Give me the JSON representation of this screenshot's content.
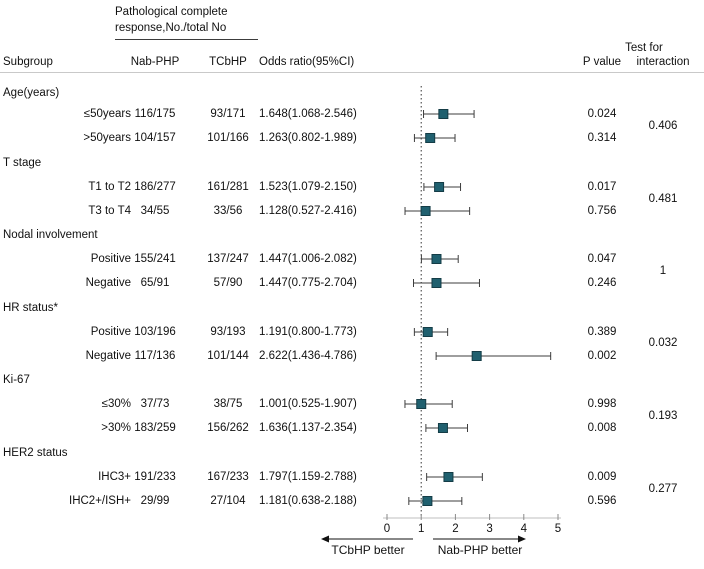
{
  "header": {
    "response_title_line1": "Pathological complete",
    "response_title_line2": "response,No./total No",
    "subgroup": "Subgroup",
    "nab": "Nab-PHP",
    "tcb": "TCbHP",
    "odds_ratio": "Odds ratio(95%CI)",
    "p_value": "P value",
    "test_for": "Test for",
    "interaction": "interaction"
  },
  "chart_data": {
    "type": "forest",
    "title": "Pathological complete response,No./total No",
    "xlim": [
      0,
      5
    ],
    "x_ticks": [
      "0",
      "1",
      "2",
      "3",
      "4",
      "5"
    ],
    "ref_line": 1,
    "xlabel_left": "TCbHP better",
    "xlabel_right": "Nab-PHP better",
    "colors": {
      "marker_fill": "#20606f",
      "marker_stroke": "#143c46",
      "ci_line": "#3d3d3d",
      "axis_line": "#bfbfbf",
      "tick": "#8a8a8a",
      "ref_line": "#333333",
      "text": "#111111"
    },
    "groups": [
      {
        "label": "Age(years)",
        "interaction_p": "0.406",
        "rows": [
          {
            "label": "≤50years",
            "nab": "116/175",
            "tcb": "93/171",
            "or_text": "1.648(1.068-2.546)",
            "est": 1.648,
            "lo": 1.068,
            "hi": 2.546,
            "p": "0.024"
          },
          {
            "label": ">50years",
            "nab": "104/157",
            "tcb": "101/166",
            "or_text": "1.263(0.802-1.989)",
            "est": 1.263,
            "lo": 0.802,
            "hi": 1.989,
            "p": "0.314"
          }
        ]
      },
      {
        "label": "T stage",
        "interaction_p": "0.481",
        "rows": [
          {
            "label": "T1 to T2",
            "nab": "186/277",
            "tcb": "161/281",
            "or_text": "1.523(1.079-2.150)",
            "est": 1.523,
            "lo": 1.079,
            "hi": 2.15,
            "p": "0.017"
          },
          {
            "label": "T3 to T4",
            "nab": "34/55",
            "tcb": "33/56",
            "or_text": "1.128(0.527-2.416)",
            "est": 1.128,
            "lo": 0.527,
            "hi": 2.416,
            "p": "0.756"
          }
        ]
      },
      {
        "label": "Nodal involvement",
        "interaction_p": "1",
        "rows": [
          {
            "label": "Positive",
            "nab": "155/241",
            "tcb": "137/247",
            "or_text": "1.447(1.006-2.082)",
            "est": 1.447,
            "lo": 1.006,
            "hi": 2.082,
            "p": "0.047"
          },
          {
            "label": "Negative",
            "nab": "65/91",
            "tcb": "57/90",
            "or_text": "1.447(0.775-2.704)",
            "est": 1.447,
            "lo": 0.775,
            "hi": 2.704,
            "p": "0.246"
          }
        ]
      },
      {
        "label": "HR status*",
        "interaction_p": "0.032",
        "rows": [
          {
            "label": "Positive",
            "nab": "103/196",
            "tcb": "93/193",
            "or_text": "1.191(0.800-1.773)",
            "est": 1.191,
            "lo": 0.8,
            "hi": 1.773,
            "p": "0.389"
          },
          {
            "label": "Negative",
            "nab": "117/136",
            "tcb": "101/144",
            "or_text": "2.622(1.436-4.786)",
            "est": 2.622,
            "lo": 1.436,
            "hi": 4.786,
            "p": "0.002"
          }
        ]
      },
      {
        "label": "Ki-67",
        "interaction_p": "0.193",
        "rows": [
          {
            "label": "≤30%",
            "nab": "37/73",
            "tcb": "38/75",
            "or_text": "1.001(0.525-1.907)",
            "est": 1.001,
            "lo": 0.525,
            "hi": 1.907,
            "p": "0.998"
          },
          {
            "label": ">30%",
            "nab": "183/259",
            "tcb": "156/262",
            "or_text": "1.636(1.137-2.354)",
            "est": 1.636,
            "lo": 1.137,
            "hi": 2.354,
            "p": "0.008"
          }
        ]
      },
      {
        "label": "HER2 status",
        "interaction_p": "0.277",
        "rows": [
          {
            "label": "IHC3+",
            "nab": "191/233",
            "tcb": "167/233",
            "or_text": "1.797(1.159-2.788)",
            "est": 1.797,
            "lo": 1.159,
            "hi": 2.788,
            "p": "0.009"
          },
          {
            "label": "IHC2+/ISH+",
            "nab": "29/99",
            "tcb": "27/104",
            "or_text": "1.181(0.638-2.188)",
            "est": 1.181,
            "lo": 0.638,
            "hi": 2.188,
            "p": "0.596"
          }
        ]
      }
    ]
  }
}
